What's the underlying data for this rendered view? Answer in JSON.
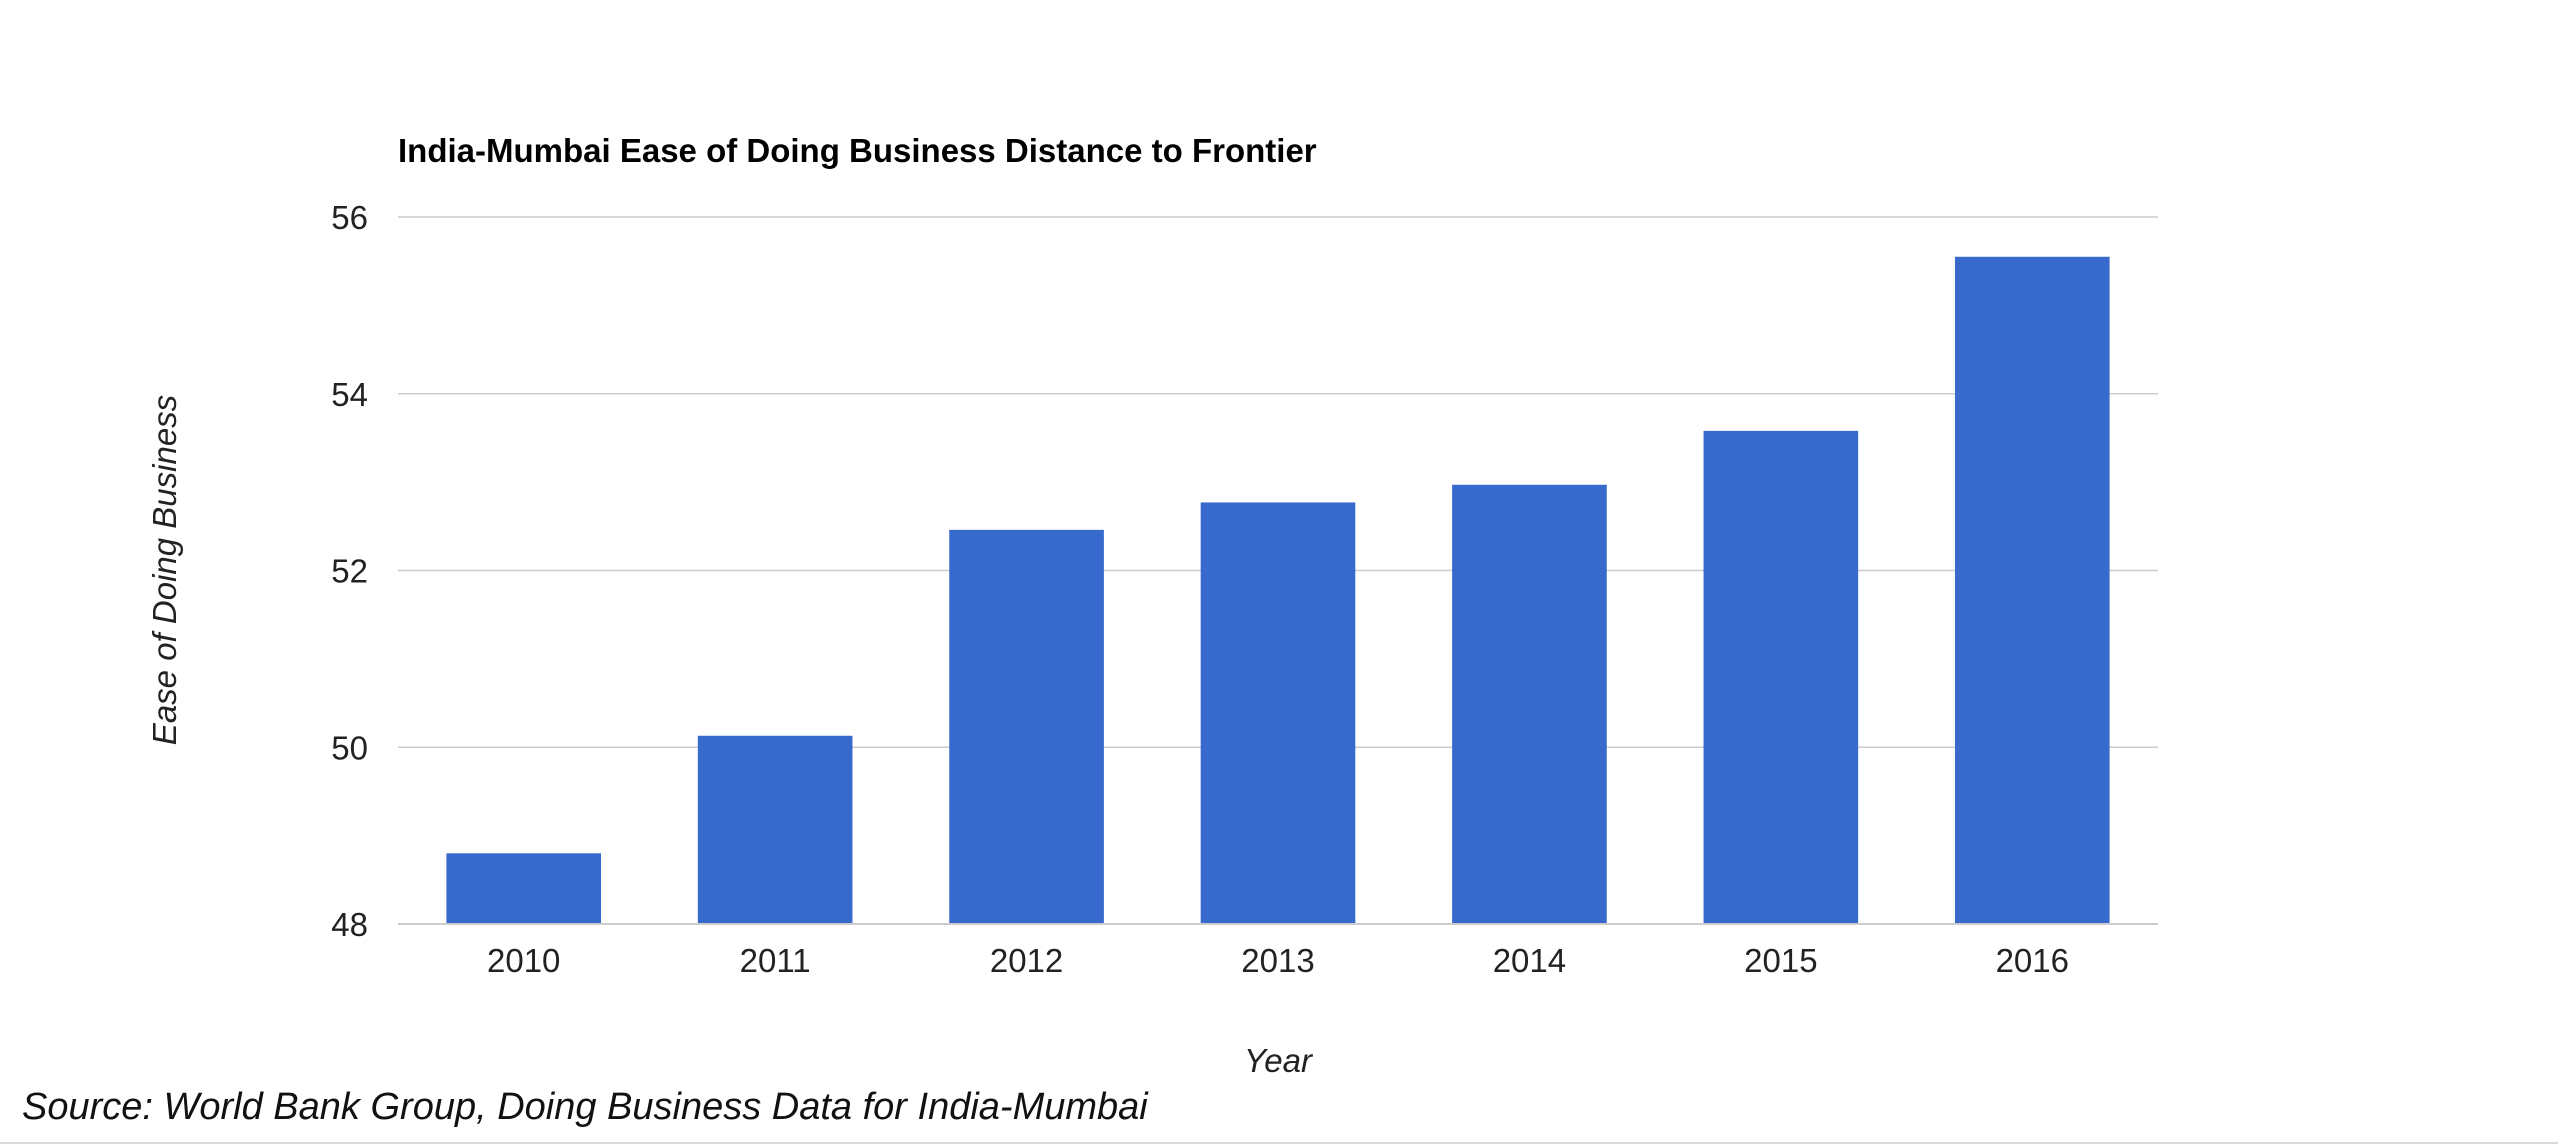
{
  "chart_data": {
    "type": "bar",
    "title": "India-Mumbai Ease of Doing Business Distance to Frontier",
    "xlabel": "Year",
    "ylabel": "Ease of Doing Business",
    "categories": [
      "2010",
      "2011",
      "2012",
      "2013",
      "2014",
      "2015",
      "2016"
    ],
    "values": [
      48.8,
      50.13,
      52.46,
      52.77,
      52.97,
      53.58,
      55.55
    ],
    "ylim": [
      48,
      56
    ],
    "yticks": [
      "48",
      "50",
      "52",
      "54",
      "56"
    ],
    "grid": true,
    "legend": "none",
    "bar_color": "#3869cc",
    "gridline_color": "#cccccc"
  },
  "source": "Source: World Bank Group, Doing Business Data for India-Mumbai"
}
